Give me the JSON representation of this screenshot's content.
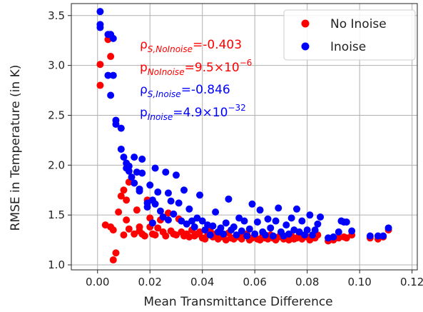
{
  "chart_data": {
    "type": "scatter",
    "xlabel": "Mean Transmittance Difference",
    "ylabel": "RMSE in Temperature (in K)",
    "xlim": [
      -0.01,
      0.122
    ],
    "ylim": [
      0.95,
      3.62
    ],
    "xticks": [
      "0.00",
      "0.02",
      "0.04",
      "0.06",
      "0.08",
      "0.10",
      "0.12"
    ],
    "xtick_values": [
      0.0,
      0.02,
      0.04,
      0.06,
      0.08,
      0.1,
      0.12
    ],
    "yticks": [
      "1.0",
      "1.5",
      "2.0",
      "2.5",
      "3.0",
      "3.5"
    ],
    "ytick_values": [
      1.0,
      1.5,
      2.0,
      2.5,
      3.0,
      3.5
    ],
    "grid": true,
    "legend_position": "top-right",
    "colors": {
      "no_inoise": "#ff0000",
      "inoise": "#0000ff"
    },
    "series": [
      {
        "name": "No Inoise",
        "color": "#ff0000",
        "points": [
          [
            0.001,
            3.01
          ],
          [
            0.001,
            2.8
          ],
          [
            0.003,
            1.4
          ],
          [
            0.005,
            1.38
          ],
          [
            0.005,
            3.09
          ],
          [
            0.004,
            3.26
          ],
          [
            0.006,
            1.35
          ],
          [
            0.006,
            1.05
          ],
          [
            0.007,
            1.12
          ],
          [
            0.008,
            1.53
          ],
          [
            0.009,
            1.69
          ],
          [
            0.01,
            1.75
          ],
          [
            0.01,
            1.3
          ],
          [
            0.011,
            1.45
          ],
          [
            0.011,
            1.65
          ],
          [
            0.012,
            1.83
          ],
          [
            0.012,
            1.36
          ],
          [
            0.014,
            1.31
          ],
          [
            0.015,
            1.55
          ],
          [
            0.016,
            1.38
          ],
          [
            0.016,
            1.34
          ],
          [
            0.017,
            1.31
          ],
          [
            0.018,
            1.29
          ],
          [
            0.019,
            1.65
          ],
          [
            0.02,
            1.47
          ],
          [
            0.02,
            1.38
          ],
          [
            0.021,
            1.31
          ],
          [
            0.022,
            1.3
          ],
          [
            0.023,
            1.37
          ],
          [
            0.024,
            1.45
          ],
          [
            0.025,
            1.33
          ],
          [
            0.026,
            1.29
          ],
          [
            0.027,
            1.52
          ],
          [
            0.028,
            1.34
          ],
          [
            0.029,
            1.31
          ],
          [
            0.03,
            1.3
          ],
          [
            0.031,
            1.46
          ],
          [
            0.032,
            1.33
          ],
          [
            0.033,
            1.29
          ],
          [
            0.034,
            1.31
          ],
          [
            0.035,
            1.28
          ],
          [
            0.036,
            1.35
          ],
          [
            0.037,
            1.29
          ],
          [
            0.038,
            1.31
          ],
          [
            0.039,
            1.33
          ],
          [
            0.04,
            1.27
          ],
          [
            0.041,
            1.26
          ],
          [
            0.042,
            1.3
          ],
          [
            0.043,
            1.34
          ],
          [
            0.044,
            1.28
          ],
          [
            0.045,
            1.31
          ],
          [
            0.046,
            1.26
          ],
          [
            0.047,
            1.28
          ],
          [
            0.048,
            1.3
          ],
          [
            0.049,
            1.25
          ],
          [
            0.05,
            1.32
          ],
          [
            0.051,
            1.27
          ],
          [
            0.052,
            1.26
          ],
          [
            0.053,
            1.29
          ],
          [
            0.054,
            1.28
          ],
          [
            0.055,
            1.26
          ],
          [
            0.056,
            1.3
          ],
          [
            0.057,
            1.31
          ],
          [
            0.058,
            1.25
          ],
          [
            0.059,
            1.27
          ],
          [
            0.06,
            1.28
          ],
          [
            0.061,
            1.26
          ],
          [
            0.062,
            1.25
          ],
          [
            0.063,
            1.29
          ],
          [
            0.064,
            1.27
          ],
          [
            0.065,
            1.26
          ],
          [
            0.066,
            1.3
          ],
          [
            0.067,
            1.27
          ],
          [
            0.068,
            1.25
          ],
          [
            0.069,
            1.28
          ],
          [
            0.07,
            1.3
          ],
          [
            0.071,
            1.26
          ],
          [
            0.072,
            1.27
          ],
          [
            0.073,
            1.25
          ],
          [
            0.074,
            1.29
          ],
          [
            0.075,
            1.26
          ],
          [
            0.076,
            1.27
          ],
          [
            0.077,
            1.3
          ],
          [
            0.078,
            1.26
          ],
          [
            0.08,
            1.28
          ],
          [
            0.081,
            1.25
          ],
          [
            0.083,
            1.27
          ],
          [
            0.084,
            1.3
          ],
          [
            0.088,
            1.24
          ],
          [
            0.09,
            1.25
          ],
          [
            0.092,
            1.27
          ],
          [
            0.094,
            1.28
          ],
          [
            0.095,
            1.27
          ],
          [
            0.097,
            1.3
          ],
          [
            0.104,
            1.27
          ],
          [
            0.107,
            1.26
          ],
          [
            0.109,
            1.28
          ],
          [
            0.111,
            1.35
          ]
        ]
      },
      {
        "name": "Inoise",
        "color": "#0000ff",
        "points": [
          [
            0.001,
            3.54
          ],
          [
            0.001,
            3.41
          ],
          [
            0.001,
            3.38
          ],
          [
            0.004,
            3.31
          ],
          [
            0.005,
            3.31
          ],
          [
            0.006,
            3.27
          ],
          [
            0.004,
            2.9
          ],
          [
            0.006,
            2.9
          ],
          [
            0.005,
            2.7
          ],
          [
            0.007,
            2.45
          ],
          [
            0.007,
            2.41
          ],
          [
            0.009,
            2.37
          ],
          [
            0.009,
            2.16
          ],
          [
            0.01,
            2.08
          ],
          [
            0.011,
            2.02
          ],
          [
            0.011,
            1.97
          ],
          [
            0.012,
            1.99
          ],
          [
            0.012,
            1.94
          ],
          [
            0.013,
            1.88
          ],
          [
            0.014,
            2.08
          ],
          [
            0.014,
            1.82
          ],
          [
            0.015,
            1.93
          ],
          [
            0.016,
            1.76
          ],
          [
            0.016,
            1.74
          ],
          [
            0.017,
            2.06
          ],
          [
            0.017,
            1.92
          ],
          [
            0.019,
            1.62
          ],
          [
            0.019,
            1.58
          ],
          [
            0.02,
            1.8
          ],
          [
            0.021,
            1.65
          ],
          [
            0.021,
            1.42
          ],
          [
            0.022,
            1.97
          ],
          [
            0.022,
            1.61
          ],
          [
            0.023,
            1.73
          ],
          [
            0.024,
            1.54
          ],
          [
            0.025,
            1.48
          ],
          [
            0.026,
            1.93
          ],
          [
            0.027,
            1.72
          ],
          [
            0.027,
            1.45
          ],
          [
            0.028,
            1.64
          ],
          [
            0.029,
            1.51
          ],
          [
            0.03,
            1.9
          ],
          [
            0.031,
            1.62
          ],
          [
            0.032,
            1.44
          ],
          [
            0.033,
            1.75
          ],
          [
            0.034,
            1.41
          ],
          [
            0.035,
            1.56
          ],
          [
            0.036,
            1.44
          ],
          [
            0.037,
            1.38
          ],
          [
            0.038,
            1.47
          ],
          [
            0.039,
            1.7
          ],
          [
            0.04,
            1.44
          ],
          [
            0.041,
            1.35
          ],
          [
            0.042,
            1.4
          ],
          [
            0.043,
            1.3
          ],
          [
            0.044,
            1.39
          ],
          [
            0.045,
            1.53
          ],
          [
            0.046,
            1.33
          ],
          [
            0.047,
            1.37
          ],
          [
            0.048,
            1.31
          ],
          [
            0.049,
            1.42
          ],
          [
            0.05,
            1.66
          ],
          [
            0.051,
            1.35
          ],
          [
            0.052,
            1.38
          ],
          [
            0.053,
            1.3
          ],
          [
            0.054,
            1.47
          ],
          [
            0.055,
            1.34
          ],
          [
            0.056,
            1.44
          ],
          [
            0.057,
            1.29
          ],
          [
            0.058,
            1.36
          ],
          [
            0.059,
            1.61
          ],
          [
            0.06,
            1.31
          ],
          [
            0.061,
            1.43
          ],
          [
            0.062,
            1.55
          ],
          [
            0.063,
            1.33
          ],
          [
            0.064,
            1.3
          ],
          [
            0.065,
            1.46
          ],
          [
            0.066,
            1.37
          ],
          [
            0.067,
            1.29
          ],
          [
            0.068,
            1.44
          ],
          [
            0.069,
            1.57
          ],
          [
            0.07,
            1.33
          ],
          [
            0.071,
            1.29
          ],
          [
            0.072,
            1.4
          ],
          [
            0.073,
            1.31
          ],
          [
            0.074,
            1.47
          ],
          [
            0.075,
            1.35
          ],
          [
            0.076,
            1.56
          ],
          [
            0.077,
            1.33
          ],
          [
            0.078,
            1.44
          ],
          [
            0.079,
            1.3
          ],
          [
            0.08,
            1.35
          ],
          [
            0.081,
            1.5
          ],
          [
            0.082,
            1.3
          ],
          [
            0.083,
            1.35
          ],
          [
            0.084,
            1.41
          ],
          [
            0.085,
            1.48
          ],
          [
            0.088,
            1.27
          ],
          [
            0.09,
            1.28
          ],
          [
            0.092,
            1.33
          ],
          [
            0.093,
            1.44
          ],
          [
            0.094,
            1.43
          ],
          [
            0.095,
            1.43
          ],
          [
            0.097,
            1.34
          ],
          [
            0.104,
            1.29
          ],
          [
            0.107,
            1.29
          ],
          [
            0.109,
            1.29
          ],
          [
            0.111,
            1.37
          ]
        ]
      }
    ],
    "annotations": [
      {
        "label": "ρ",
        "sub": "S,NoInoise",
        "value": "=-0.403",
        "sup": "",
        "color": "#ff0000"
      },
      {
        "label": "p",
        "sub": "NoInoise",
        "value": "=9.5×10",
        "sup": "−6",
        "color": "#ff0000"
      },
      {
        "label": "ρ",
        "sub": "S,Inoise",
        "value": "=-0.846",
        "sup": "",
        "color": "#0000ff"
      },
      {
        "label": "p",
        "sub": "Inoise",
        "value": "=4.9×10",
        "sup": "−32",
        "color": "#0000ff"
      }
    ]
  }
}
